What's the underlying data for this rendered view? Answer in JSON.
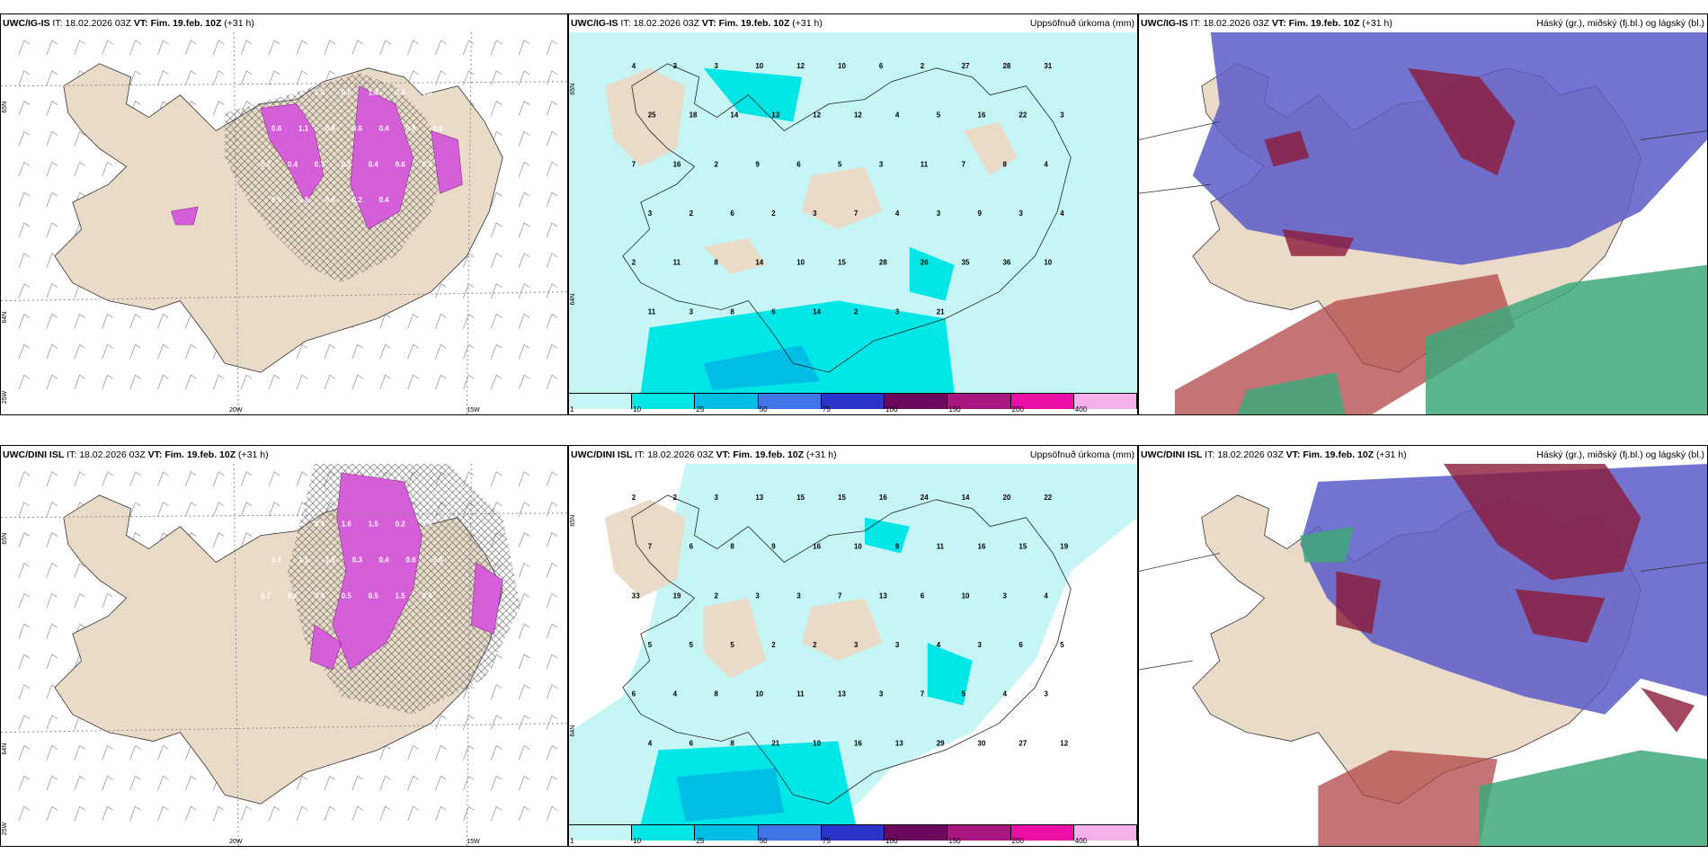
{
  "panels": [
    {
      "id": "igis-precip-type",
      "model": "UWC/IG-IS",
      "it_label": "IT:",
      "it_value": "18.02.2026 03Z",
      "vt_label": "VT:",
      "vt_value": "Fim. 19.feb. 10Z",
      "lead": "(+31 h)",
      "right_title": "",
      "axis_labels": [
        "65N",
        "64N",
        "25W",
        "20W",
        "15W"
      ],
      "value_labels": [
        "1.4",
        "2.2",
        "1.8",
        "0.6",
        "1.3",
        "0.4",
        "0.8",
        "0.6",
        "1.1",
        "0.8",
        "0.6",
        "0.4",
        "0.8",
        "0.6",
        "0.7",
        "0.4",
        "0.7",
        "0.5",
        "0.4",
        "0.6",
        "0.4",
        "0.6",
        "0.8",
        "0.6",
        "0.2",
        "0.4"
      ]
    },
    {
      "id": "igis-accum",
      "model": "UWC/IG-IS",
      "it_label": "IT:",
      "it_value": "18.02.2026 03Z",
      "vt_label": "VT:",
      "vt_value": "Fim. 19.feb. 10Z",
      "lead": "(+31 h)",
      "right_title": "Uppsöfnuð úrkoma (mm)",
      "axis_labels": [
        "65N",
        "64N"
      ],
      "value_labels": [
        "4",
        "3",
        "3",
        "10",
        "12",
        "10",
        "6",
        "2",
        "27",
        "28",
        "31",
        "25",
        "18",
        "14",
        "13",
        "12",
        "12",
        "4",
        "5",
        "16",
        "22",
        "3",
        "7",
        "16",
        "2",
        "9",
        "6",
        "5",
        "3",
        "11",
        "7",
        "8",
        "4",
        "3",
        "2",
        "6",
        "2",
        "3",
        "7",
        "4",
        "3",
        "9",
        "3",
        "4",
        "2",
        "11",
        "8",
        "14",
        "10",
        "15",
        "28",
        "26",
        "35",
        "36",
        "10",
        "11",
        "3",
        "8",
        "6",
        "14",
        "2",
        "3",
        "21"
      ],
      "colorbar": {
        "labels": [
          "1",
          "10",
          "25",
          "50",
          "75",
          "100",
          "150",
          "200",
          "400"
        ],
        "colors": [
          "#c5f5f5",
          "#00e6e6",
          "#00bde6",
          "#3f78e6",
          "#2c33c8",
          "#6b0a5c",
          "#a8177f",
          "#ea0fa6",
          "#f5b0ec"
        ]
      }
    },
    {
      "id": "igis-clouds",
      "model": "UWC/IG-IS",
      "it_label": "IT:",
      "it_value": "18.02.2026 03Z",
      "vt_label": "VT:",
      "vt_value": "Fim. 19.feb. 10Z",
      "lead": "(+31 h)",
      "right_title": "Háský (gr.), miðský (fj.bl.) og lágský (bl.)",
      "axis_labels": [],
      "value_labels": []
    },
    {
      "id": "dini-precip-type",
      "model": "UWC/DINI ISL",
      "it_label": "IT:",
      "it_value": "18.02.2026 03Z",
      "vt_label": "VT:",
      "vt_value": "Fim. 19.feb. 10Z",
      "lead": "(+31 h)",
      "right_title": "",
      "axis_labels": [
        "65N",
        "64N",
        "25W",
        "20W",
        "15W"
      ],
      "value_labels": [
        "0.4",
        "1.3",
        "0.4",
        "1.6",
        "1.5",
        "0.2",
        "1.4",
        "0.5",
        "1.1",
        "1.5",
        "0.3",
        "0.4",
        "0.6",
        "0.5",
        "0.7",
        "0.6",
        "0.4",
        "0.5",
        "0.5",
        "1.5",
        "0.4"
      ]
    },
    {
      "id": "dini-accum",
      "model": "UWC/DINI ISL",
      "it_label": "IT:",
      "it_value": "18.02.2026 03Z",
      "vt_label": "VT:",
      "vt_value": "Fim. 19.feb. 10Z",
      "lead": "(+31 h)",
      "right_title": "Uppsöfnuð úrkoma (mm)",
      "axis_labels": [
        "65N",
        "64N"
      ],
      "value_labels": [
        "2",
        "2",
        "3",
        "13",
        "15",
        "15",
        "16",
        "24",
        "14",
        "20",
        "22",
        "7",
        "6",
        "8",
        "9",
        "16",
        "10",
        "9",
        "11",
        "16",
        "15",
        "19",
        "33",
        "19",
        "2",
        "3",
        "3",
        "7",
        "13",
        "6",
        "10",
        "3",
        "4",
        "5",
        "5",
        "5",
        "2",
        "2",
        "3",
        "3",
        "4",
        "3",
        "6",
        "5",
        "6",
        "4",
        "8",
        "10",
        "11",
        "13",
        "3",
        "7",
        "5",
        "4",
        "3",
        "4",
        "6",
        "8",
        "21",
        "10",
        "16",
        "13",
        "29",
        "30",
        "27",
        "12"
      ],
      "colorbar": {
        "labels": [
          "1",
          "10",
          "25",
          "50",
          "75",
          "100",
          "150",
          "200",
          "400"
        ],
        "colors": [
          "#c5f5f5",
          "#00e6e6",
          "#00bde6",
          "#3f78e6",
          "#2c33c8",
          "#6b0a5c",
          "#a8177f",
          "#ea0fa6",
          "#f5b0ec"
        ]
      }
    },
    {
      "id": "dini-clouds",
      "model": "UWC/DINI ISL",
      "it_label": "IT:",
      "it_value": "18.02.2026 03Z",
      "vt_label": "VT:",
      "vt_value": "Fim. 19.feb. 10Z",
      "lead": "(+31 h)",
      "right_title": "Háský (gr.), miðský (fj.bl.) og lágský (bl.)",
      "axis_labels": [],
      "value_labels": []
    }
  ],
  "colors": {
    "land": "#eadbc8",
    "precip_light": "#c5f5f5",
    "precip_mid": "#00e6e6",
    "snow_magenta": "#d45fd8",
    "cloud_high": "#5b5bc8",
    "cloud_mid": "#8b1a3a",
    "cloud_low": "#3ea87a"
  }
}
